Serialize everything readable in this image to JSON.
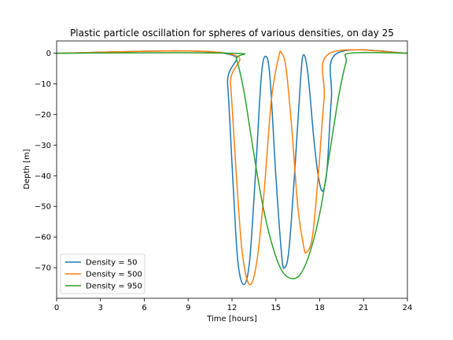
{
  "chart_data": {
    "type": "line",
    "title": "Plastic particle oscillation for spheres of various densities, on day 25",
    "xlabel": "Time [hours]",
    "ylabel": "Depth [m]",
    "xlim": [
      0,
      24
    ],
    "ylim": [
      -80,
      4
    ],
    "xticks": [
      0,
      3,
      6,
      9,
      12,
      15,
      18,
      21,
      24
    ],
    "yticks": [
      0,
      -10,
      -20,
      -30,
      -40,
      -50,
      -60,
      -70
    ],
    "ytick_labels": [
      "0",
      "−10",
      "−20",
      "−30",
      "−40",
      "−50",
      "−60",
      "−70"
    ],
    "grid": false,
    "legend_position": "lower-left",
    "series": [
      {
        "name": "Density = 50",
        "color": "#1f77b4",
        "points": [
          [
            0,
            0
          ],
          [
            11.4,
            0
          ],
          [
            11.7,
            -10
          ],
          [
            12.1,
            -45
          ],
          [
            12.4,
            -68
          ],
          [
            12.8,
            -75.5
          ],
          [
            13.2,
            -68
          ],
          [
            13.6,
            -40
          ],
          [
            14.0,
            -8
          ],
          [
            14.3,
            -1
          ],
          [
            14.6,
            -8
          ],
          [
            15.0,
            -40
          ],
          [
            15.4,
            -66
          ],
          [
            15.6,
            -70
          ],
          [
            15.9,
            -64
          ],
          [
            16.3,
            -38
          ],
          [
            16.7,
            -8
          ],
          [
            16.9,
            -0.5
          ],
          [
            17.2,
            -7
          ],
          [
            17.6,
            -28
          ],
          [
            17.9,
            -40
          ],
          [
            18.2,
            -45
          ],
          [
            18.5,
            -38
          ],
          [
            18.8,
            -15
          ],
          [
            19.2,
            0
          ],
          [
            24,
            0
          ]
        ]
      },
      {
        "name": "Density = 500",
        "color": "#ff7f0e",
        "points": [
          [
            0,
            0
          ],
          [
            11.6,
            0
          ],
          [
            11.9,
            -10
          ],
          [
            12.3,
            -40
          ],
          [
            12.7,
            -65
          ],
          [
            13.2,
            -75.5
          ],
          [
            13.7,
            -68
          ],
          [
            14.2,
            -45
          ],
          [
            14.7,
            -15
          ],
          [
            15.2,
            -1
          ],
          [
            15.4,
            0
          ],
          [
            15.7,
            -5
          ],
          [
            16.1,
            -25
          ],
          [
            16.5,
            -50
          ],
          [
            16.9,
            -63
          ],
          [
            17.1,
            -65
          ],
          [
            17.5,
            -60
          ],
          [
            17.9,
            -40
          ],
          [
            18.3,
            -15
          ],
          [
            18.7,
            0
          ],
          [
            24,
            0
          ]
        ]
      },
      {
        "name": "Density = 950",
        "color": "#2ca02c",
        "points": [
          [
            0,
            0
          ],
          [
            11.9,
            0
          ],
          [
            12.3,
            -2
          ],
          [
            12.8,
            -12
          ],
          [
            13.4,
            -30
          ],
          [
            14.0,
            -47
          ],
          [
            14.6,
            -60
          ],
          [
            15.3,
            -70
          ],
          [
            16.0,
            -73.5
          ],
          [
            16.7,
            -72
          ],
          [
            17.4,
            -64
          ],
          [
            18.1,
            -50
          ],
          [
            18.7,
            -32
          ],
          [
            19.3,
            -14
          ],
          [
            19.8,
            -3
          ],
          [
            20.1,
            0
          ],
          [
            24,
            0
          ]
        ]
      }
    ]
  }
}
